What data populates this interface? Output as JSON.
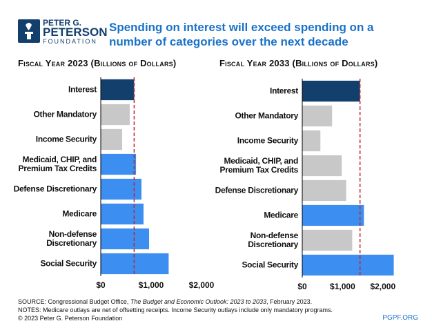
{
  "header": {
    "logo": [
      "PETER G.",
      "PETERSON",
      "FOUNDATION"
    ],
    "title": "Spending on interest will exceed spending on a number of categories over the next decade"
  },
  "chart_data": [
    {
      "type": "bar",
      "orientation": "horizontal",
      "title": "Fiscal Year 2023 (Billions of Dollars)",
      "categories": [
        "Interest",
        "Other Mandatory",
        "Income Security",
        "Medicaid, CHIP, and\nPremium Tax Credits",
        "Defense Discretionary",
        "Medicare",
        "Non-defense\nDiscretionary",
        "Social Security"
      ],
      "values": [
        663,
        575,
        425,
        700,
        808,
        849,
        959,
        1348
      ],
      "colors": [
        "#133f6d",
        "#c8c8c8",
        "#c8c8c8",
        "#3c8ef0",
        "#3c8ef0",
        "#3c8ef0",
        "#3c8ef0",
        "#3c8ef0"
      ],
      "xlim": [
        0,
        2000
      ],
      "xticks": [
        {
          "value": 0,
          "label": "$0"
        },
        {
          "value": 1000,
          "label": "$1,000"
        },
        {
          "value": 2000,
          "label": "$2,000"
        }
      ],
      "reference_line_color": "#c0262d"
    },
    {
      "type": "bar",
      "orientation": "horizontal",
      "title": "Fiscal Year 2033 (Billions of Dollars)",
      "categories": [
        "Interest",
        "Other Mandatory",
        "Income Security",
        "Medicaid, CHIP, and\nPremium Tax Credits",
        "Defense Discretionary",
        "Medicare",
        "Non-defense\nDiscretionary",
        "Social Security"
      ],
      "values": [
        1433,
        740,
        450,
        980,
        1090,
        1530,
        1240,
        2270
      ],
      "colors": [
        "#133f6d",
        "#c8c8c8",
        "#c8c8c8",
        "#c8c8c8",
        "#c8c8c8",
        "#3c8ef0",
        "#c8c8c8",
        "#3c8ef0"
      ],
      "xlim": [
        0,
        2500
      ],
      "xticks": [
        {
          "value": 0,
          "label": "$0"
        },
        {
          "value": 1000,
          "label": "$1,000"
        },
        {
          "value": 2000,
          "label": "$2,000"
        }
      ],
      "reference_line_color": "#c0262d"
    }
  ],
  "footer": {
    "source": [
      "SOURCE: Congressional Budget Office, ",
      "The Budget and Economic Outlook: 2023 to 2033",
      ", February 2023."
    ],
    "notes": "NOTES: Medicare outlays are net of offsetting receipts. Income Security outlays include only mandatory programs.",
    "copyright": "© 2023 Peter G. Peterson Foundation",
    "site": "PGPF.ORG"
  }
}
